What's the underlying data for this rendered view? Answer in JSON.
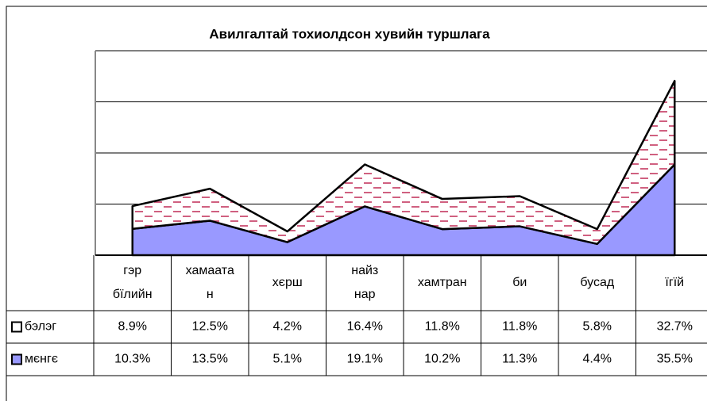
{
  "chart_data": {
    "type": "area",
    "stacked": true,
    "title": "Авилгалтай тохиолдсон хувийн туршлага",
    "categories": [
      "гэр бїлийн",
      "хамаатан",
      "хєрш",
      "найз нар",
      "хамтран",
      "би",
      "бусад",
      "їгїй"
    ],
    "series": [
      {
        "name": "бэлэг",
        "color": "#ffffff",
        "values": [
          8.9,
          12.5,
          4.2,
          16.4,
          11.8,
          11.8,
          5.8,
          32.7
        ],
        "value_labels": [
          "8.9%",
          "12.5%",
          "4.2%",
          "16.4%",
          "11.8%",
          "11.8%",
          "5.8%",
          "32.7%"
        ]
      },
      {
        "name": "мєнгє",
        "color": "#9999ff",
        "values": [
          10.3,
          13.5,
          5.1,
          19.1,
          10.2,
          11.3,
          4.4,
          35.5
        ],
        "value_labels": [
          "10.3%",
          "13.5%",
          "5.1%",
          "19.1%",
          "10.2%",
          "11.3%",
          "4.4%",
          "35.5%"
        ]
      }
    ],
    "ylim": [
      0,
      80
    ],
    "yticks": [
      0,
      20,
      40,
      60,
      80
    ],
    "grid": true
  }
}
